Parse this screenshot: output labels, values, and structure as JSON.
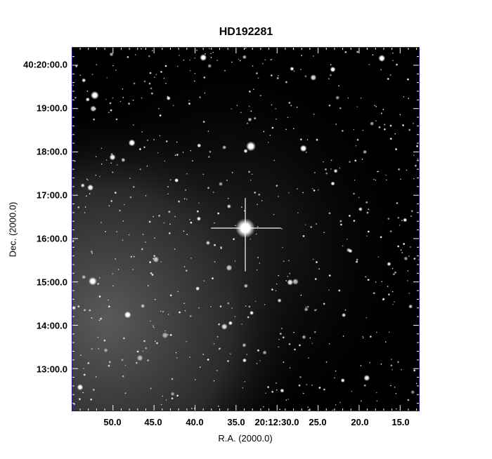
{
  "title": "HD192281",
  "x_axis": {
    "label": "R.A. (2000.0)",
    "ticks": [
      "50.0",
      "45.0",
      "40.0",
      "35.0",
      "20:12:30.0",
      "25.0",
      "20.0",
      "15.0"
    ]
  },
  "y_axis": {
    "label": "Dec. (2000.0)",
    "ticks": [
      "40:20:00.0",
      "19:00.0",
      "18:00.0",
      "17:00.0",
      "16:00.0",
      "15:00.0",
      "14:00.0",
      "13:00.0"
    ]
  },
  "colors": {
    "frame": "#1a1a8c",
    "sky": "#000000",
    "stars": "#ffffff"
  }
}
